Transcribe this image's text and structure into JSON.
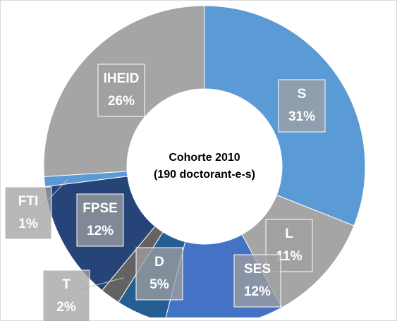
{
  "chart_data": {
    "type": "donut",
    "center_text": [
      "Cohorte 2010",
      "(190 doctorant-e-s)"
    ],
    "categories": [
      "S",
      "L",
      "SES",
      "D",
      "T",
      "FPSE",
      "FTI",
      "IHEID"
    ],
    "values": [
      31,
      11,
      12,
      5,
      2,
      12,
      1,
      26
    ],
    "value_labels": [
      "31%",
      "11%",
      "12%",
      "5%",
      "2%",
      "12%",
      "1%",
      "26%"
    ],
    "colors": [
      "#5b9bd5",
      "#a5a5a5",
      "#4472c4",
      "#255e91",
      "#636363",
      "#264478",
      "#5b9bd5",
      "#a5a5a5"
    ]
  }
}
